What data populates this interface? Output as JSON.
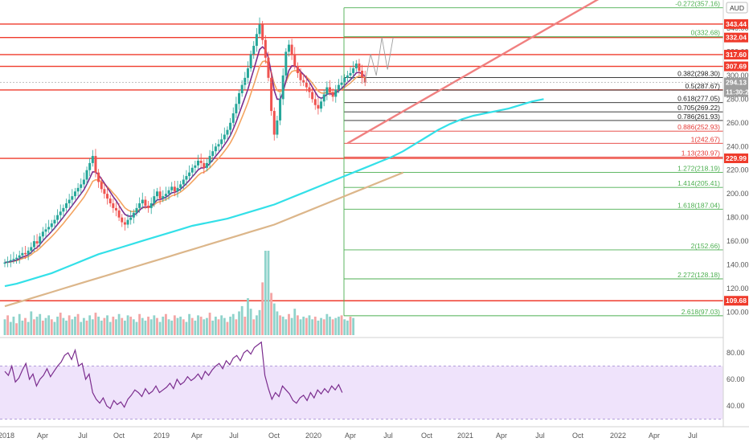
{
  "currency": "AUD",
  "price_axis_ticks": [
    360,
    340,
    320,
    300,
    280,
    260,
    240,
    220,
    200,
    180,
    160,
    140,
    120,
    100
  ],
  "price_axis_tick_labels": [
    "",
    "340.00",
    "320.00",
    "300.00",
    "280.00",
    "260.00",
    "240.00",
    "220.00",
    "200.00",
    "180.00",
    "160.00",
    "140.00",
    "120.00",
    "100.00"
  ],
  "rsi_axis_ticks": [
    80,
    60,
    40
  ],
  "rsi_axis_tick_labels": [
    "80.00",
    "60.00",
    "40.00"
  ],
  "time_axis_labels": [
    "2018",
    "Apr",
    "Jul",
    "Oct",
    "2019",
    "Apr",
    "Jul",
    "Oct",
    "2020",
    "Apr",
    "Jul",
    "Oct",
    "2021",
    "Apr",
    "Jul",
    "Oct",
    "2022",
    "Apr",
    "Jul"
  ],
  "colors": {
    "resistance": "#ef3b2c",
    "trendline": "#f08080",
    "fib_green": "#4caf50",
    "fib_black": "#222222",
    "fib_red": "#e53935",
    "ema_fast": "#f4a460",
    "ema_slow": "#7b2d8e",
    "ma_50": "#33e0e8",
    "ma_200": "#dcb68a",
    "candle_up": "#26a69a",
    "candle_down": "#ef5350",
    "vol_up": "#8fd3cb",
    "vol_down": "#f4a5a5",
    "rsi_line": "#7b2d8e",
    "rsi_band": "#efe3fb"
  },
  "horizontal_levels": [
    {
      "price": 343.44,
      "label": "343.44"
    },
    {
      "price": 332.04,
      "label": "332.04"
    },
    {
      "price": 317.6,
      "label": "317.60"
    },
    {
      "price": 307.69,
      "label": "307.69"
    },
    {
      "price": 287.77,
      "label": "287.77"
    },
    {
      "price": 229.99,
      "label": "229.99"
    },
    {
      "price": 109.68,
      "label": "109.68"
    }
  ],
  "current_price": {
    "price": 294.13,
    "label": "294.13",
    "countdown": "11:30:25"
  },
  "fib_levels": [
    {
      "price": 357.16,
      "label": "-0.272(357.16)",
      "color": "green"
    },
    {
      "price": 332.68,
      "label": "0(332.68)",
      "color": "green"
    },
    {
      "price": 298.3,
      "label": "0.382(298.30)",
      "color": "black"
    },
    {
      "price": 287.67,
      "label": "0.5(287.67)",
      "color": "black"
    },
    {
      "price": 277.05,
      "label": "0.618(277.05)",
      "color": "black"
    },
    {
      "price": 269.22,
      "label": "0.705(269.22)",
      "color": "black"
    },
    {
      "price": 261.93,
      "label": "0.786(261.93)",
      "color": "black"
    },
    {
      "price": 252.93,
      "label": "0.886(252.93)",
      "color": "red"
    },
    {
      "price": 242.67,
      "label": "1(242.67)",
      "color": "red"
    },
    {
      "price": 230.97,
      "label": "1.13(230.97)",
      "color": "red"
    },
    {
      "price": 218.19,
      "label": "1.272(218.19)",
      "color": "green"
    },
    {
      "price": 205.41,
      "label": "1.414(205.41)",
      "color": "green"
    },
    {
      "price": 187.04,
      "label": "1.618(187.04)",
      "color": "green"
    },
    {
      "price": 152.66,
      "label": "2(152.66)",
      "color": "green"
    },
    {
      "price": 128.18,
      "label": "2.272(128.18)",
      "color": "green"
    },
    {
      "price": 97.03,
      "label": "2.618(97.03)",
      "color": "green"
    }
  ],
  "chart_data": {
    "type": "line",
    "instrument_note": "weekly candlestick price chart with volume and RSI panes",
    "x_axis_range": [
      "2017-12",
      "2022-09"
    ],
    "y_axis_range": [
      90,
      370
    ],
    "rsi_range": [
      25,
      92
    ],
    "grid": false,
    "price_series_weekly_close": [
      142,
      143,
      144,
      145,
      146,
      148,
      150,
      149,
      152,
      155,
      160,
      158,
      164,
      168,
      170,
      172,
      175,
      178,
      182,
      185,
      188,
      192,
      195,
      198,
      202,
      205,
      208,
      212,
      220,
      226,
      232,
      218,
      210,
      204,
      200,
      196,
      192,
      188,
      186,
      180,
      176,
      174,
      178,
      180,
      184,
      188,
      192,
      195,
      190,
      188,
      192,
      198,
      202,
      196,
      198,
      200,
      203,
      206,
      202,
      205,
      208,
      212,
      215,
      218,
      222,
      224,
      228,
      226,
      222,
      226,
      232,
      236,
      240,
      242,
      246,
      250,
      254,
      260,
      268,
      276,
      285,
      292,
      298,
      306,
      318,
      325,
      335,
      343,
      330,
      315,
      298,
      270,
      250,
      262,
      280,
      300,
      320,
      326,
      318,
      308,
      302,
      296,
      294,
      290,
      286,
      280,
      275,
      272,
      278,
      284,
      290,
      286,
      282,
      288,
      292,
      294,
      298,
      300,
      302,
      306,
      310,
      304,
      298,
      294
    ],
    "price_series_start": "2017-12",
    "price_series_interval": "1 week",
    "triangle_apex_projection": [
      {
        "date": "2020-12",
        "price": 318
      },
      {
        "date": "2021-01",
        "price": 300
      },
      {
        "date": "2021-01",
        "price": 332
      },
      {
        "date": "2021-02",
        "price": 305
      },
      {
        "date": "2021-02",
        "price": 332
      }
    ],
    "trendline": [
      {
        "date": "2020-03",
        "price": 242.67
      },
      {
        "date": "2021-12",
        "price": 372
      }
    ],
    "ma_50_series": [
      122,
      124,
      127,
      130,
      133,
      137,
      141,
      145,
      149,
      152,
      155,
      158,
      161,
      164,
      167,
      170,
      173,
      175,
      177,
      179,
      182,
      185,
      188,
      191,
      195,
      199,
      203,
      207,
      211,
      215,
      219,
      223,
      227,
      231,
      236,
      242,
      248,
      254,
      259,
      263,
      266,
      268,
      270,
      272,
      275,
      278,
      280
    ],
    "ma_200_series": [
      105,
      108,
      111,
      114,
      117,
      120,
      123,
      126,
      129,
      132,
      135,
      138,
      141,
      144,
      147,
      150,
      153,
      156,
      159,
      162,
      165,
      168,
      171,
      174,
      178,
      182,
      186,
      190,
      194,
      198,
      202,
      206,
      210,
      214,
      218
    ],
    "ma_series_interval": "4 weeks",
    "volume_series": [
      12,
      15,
      10,
      14,
      9,
      16,
      11,
      13,
      10,
      18,
      12,
      14,
      16,
      11,
      13,
      15,
      12,
      10,
      14,
      17,
      13,
      11,
      15,
      12,
      14,
      16,
      10,
      13,
      11,
      15,
      12,
      17,
      14,
      11,
      13,
      15,
      10,
      14,
      12,
      16,
      13,
      11,
      15,
      14,
      12,
      10,
      16,
      13,
      11,
      14,
      12,
      15,
      13,
      10,
      14,
      16,
      12,
      11,
      15,
      13,
      14,
      12,
      10,
      16,
      13,
      11,
      15,
      14,
      12,
      13,
      17,
      11,
      14,
      12,
      15,
      13,
      10,
      14,
      16,
      12,
      18,
      22,
      14,
      28,
      20,
      12,
      15,
      19,
      40,
      64,
      64,
      32,
      24,
      18,
      15,
      14,
      12,
      16,
      13,
      20,
      15,
      12,
      14,
      13,
      15,
      12,
      14,
      11,
      13,
      12,
      16,
      14,
      12,
      13,
      14,
      15,
      12,
      11,
      14,
      13
    ],
    "rsi_series": [
      66,
      63,
      70,
      58,
      61,
      67,
      72,
      60,
      64,
      55,
      60,
      63,
      68,
      62,
      66,
      70,
      73,
      78,
      80,
      75,
      82,
      70,
      72,
      60,
      64,
      50,
      45,
      42,
      46,
      40,
      38,
      44,
      41,
      43,
      39,
      45,
      48,
      52,
      50,
      47,
      53,
      49,
      51,
      55,
      50,
      52,
      54,
      57,
      53,
      60,
      56,
      58,
      62,
      59,
      61,
      64,
      60,
      66,
      63,
      67,
      70,
      72,
      68,
      74,
      71,
      76,
      78,
      74,
      80,
      82,
      79,
      84,
      86,
      88,
      63,
      53,
      45,
      50,
      47,
      55,
      52,
      49,
      44,
      42,
      46,
      48,
      44,
      50,
      46,
      52,
      49,
      53,
      50,
      55,
      52,
      56,
      50
    ]
  }
}
